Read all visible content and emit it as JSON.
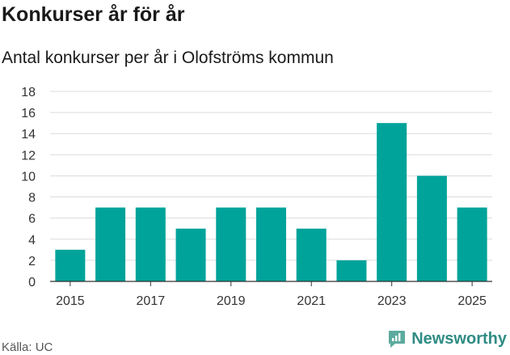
{
  "header": {
    "title": "Konkurser år för år",
    "subtitle": "Antal konkurser per år i Olofströms kommun"
  },
  "footer": {
    "source": "Källa: UC",
    "brand": "Newsworthy"
  },
  "colors": {
    "bar": "#00a39a",
    "grid": "#dcdcdc",
    "axis": "#333333",
    "brand": "#2f8c84"
  },
  "chart_data": {
    "type": "bar",
    "title": "Konkurser år för år",
    "subtitle": "Antal konkurser per år i Olofströms kommun",
    "xlabel": "",
    "ylabel": "",
    "categories": [
      "2015",
      "2016",
      "2017",
      "2018",
      "2019",
      "2020",
      "2021",
      "2022",
      "2023",
      "2024",
      "2025"
    ],
    "values": [
      3,
      7,
      7,
      5,
      7,
      7,
      5,
      2,
      15,
      10,
      7
    ],
    "x_tick_labels": [
      "2015",
      "2017",
      "2019",
      "2021",
      "2023",
      "2025"
    ],
    "y_ticks": [
      0,
      2,
      4,
      6,
      8,
      10,
      12,
      14,
      16,
      18
    ],
    "ylim": [
      0,
      18
    ],
    "grid": true,
    "legend": "none"
  }
}
